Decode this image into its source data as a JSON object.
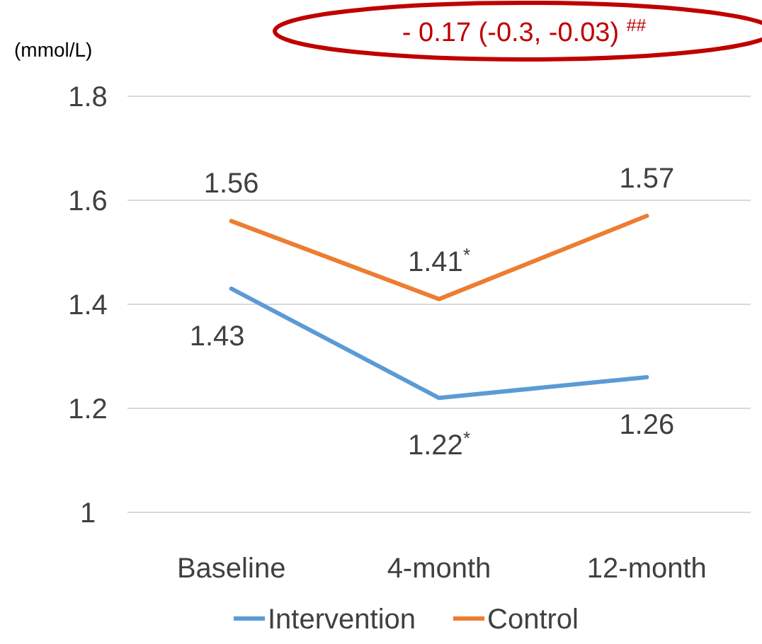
{
  "chart_data": {
    "type": "line",
    "ylabel": "(mmol/L)",
    "categories": [
      "Baseline",
      "4-month",
      "12-month"
    ],
    "series": [
      {
        "name": "Intervention",
        "color": "#5b9bd5",
        "values": [
          1.43,
          1.22,
          1.26
        ],
        "value_labels": [
          "1.43",
          "1.22$^{*}$",
          "1.26"
        ]
      },
      {
        "name": "Control",
        "color": "#ed7d31",
        "values": [
          1.56,
          1.41,
          1.57
        ],
        "value_labels": [
          "1.56",
          "1.41$^{*}$",
          "1.57"
        ]
      }
    ],
    "ylim": [
      1,
      1.8
    ],
    "yticks": [
      1,
      1.2,
      1.4,
      1.6,
      1.8
    ],
    "grid": "y",
    "legend": "bottom",
    "marker": "none",
    "line_style": "solid",
    "annotations": [
      "- 0.17 (-0.3, -0.03) $^{##}$"
    ]
  }
}
